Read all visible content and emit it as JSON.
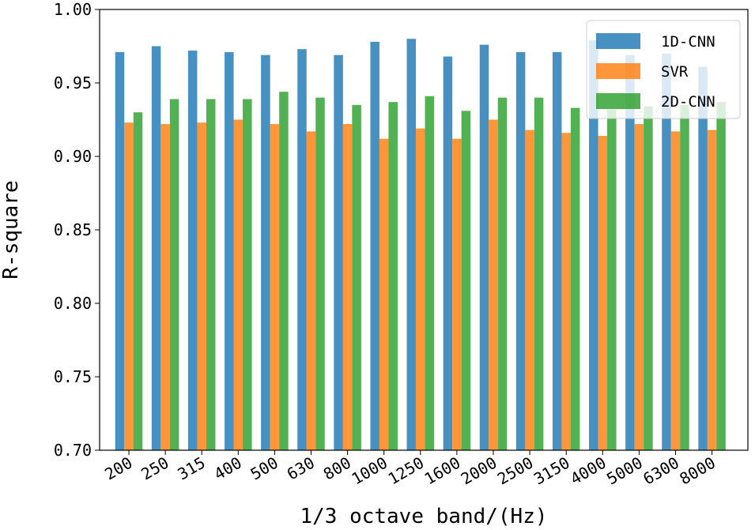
{
  "chart_data": {
    "type": "bar",
    "title": "",
    "xlabel": "1/3 octave band/(Hz)",
    "ylabel": "R-square",
    "ylim": [
      0.7,
      1.0
    ],
    "yticks": [
      "0.70",
      "0.75",
      "0.80",
      "0.85",
      "0.90",
      "0.95",
      "1.00"
    ],
    "categories": [
      "200",
      "250",
      "315",
      "400",
      "500",
      "630",
      "800",
      "1000",
      "1250",
      "1600",
      "2000",
      "2500",
      "3150",
      "4000",
      "5000",
      "6300",
      "8000"
    ],
    "series": [
      {
        "name": "1D-CNN",
        "color": "#1f77b4",
        "values": [
          0.971,
          0.975,
          0.972,
          0.971,
          0.969,
          0.973,
          0.969,
          0.978,
          0.98,
          0.968,
          0.976,
          0.971,
          0.971,
          0.979,
          0.969,
          0.97,
          0.961
        ]
      },
      {
        "name": "SVR",
        "color": "#ff7f0e",
        "values": [
          0.923,
          0.922,
          0.923,
          0.925,
          0.922,
          0.917,
          0.922,
          0.912,
          0.919,
          0.912,
          0.925,
          0.918,
          0.916,
          0.914,
          0.922,
          0.917,
          0.918
        ]
      },
      {
        "name": "2D-CNN",
        "color": "#2ca02c",
        "values": [
          0.93,
          0.939,
          0.939,
          0.939,
          0.944,
          0.94,
          0.935,
          0.937,
          0.941,
          0.931,
          0.94,
          0.94,
          0.933,
          0.932,
          0.934,
          0.935,
          0.937
        ]
      }
    ],
    "legend": {
      "position": "top-right"
    },
    "grid": false
  }
}
